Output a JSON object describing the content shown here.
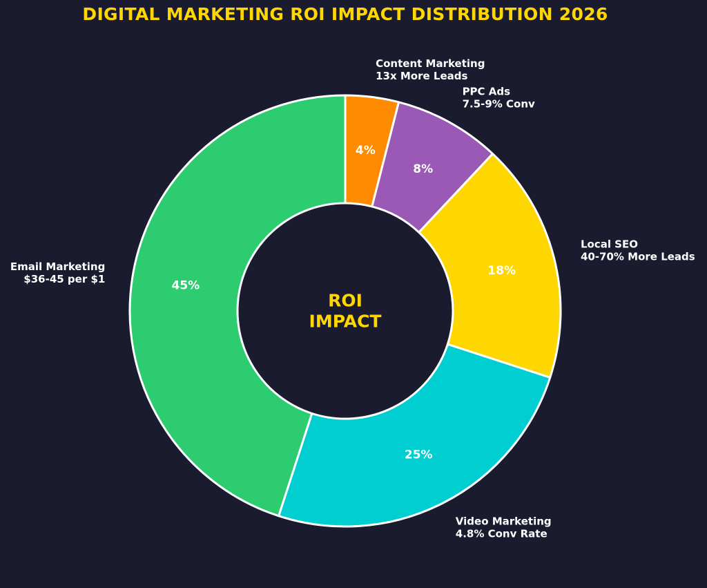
{
  "chart_data": {
    "type": "pie",
    "variant": "donut",
    "title": "DIGITAL MARKETING ROI IMPACT DISTRIBUTION 2026",
    "center_label": [
      "ROI",
      "IMPACT"
    ],
    "start_angle_deg": 90,
    "direction": "clockwise",
    "legend": "none",
    "colors": {
      "background": "#1b1b2f",
      "slice_edge": "#ffffff",
      "title": "#ffd700",
      "center_text": "#ffd700",
      "label_text": "#ffffff"
    },
    "slices": [
      {
        "name": "Content Marketing",
        "sub": "13x More Leads",
        "value": 4,
        "display": "4%",
        "color": "#ff8c00"
      },
      {
        "name": "PPC Ads",
        "sub": "7.5-9% Conv",
        "value": 8,
        "display": "8%",
        "color": "#9b59b6"
      },
      {
        "name": "Local SEO",
        "sub": "40-70% More Leads",
        "value": 18,
        "display": "18%",
        "color": "#ffd700"
      },
      {
        "name": "Video Marketing",
        "sub": "4.8% Conv Rate",
        "value": 25,
        "display": "25%",
        "color": "#00ced1"
      },
      {
        "name": "Email Marketing",
        "sub": "$36-45 per $1",
        "value": 45,
        "display": "45%",
        "color": "#2ecc71"
      }
    ]
  }
}
